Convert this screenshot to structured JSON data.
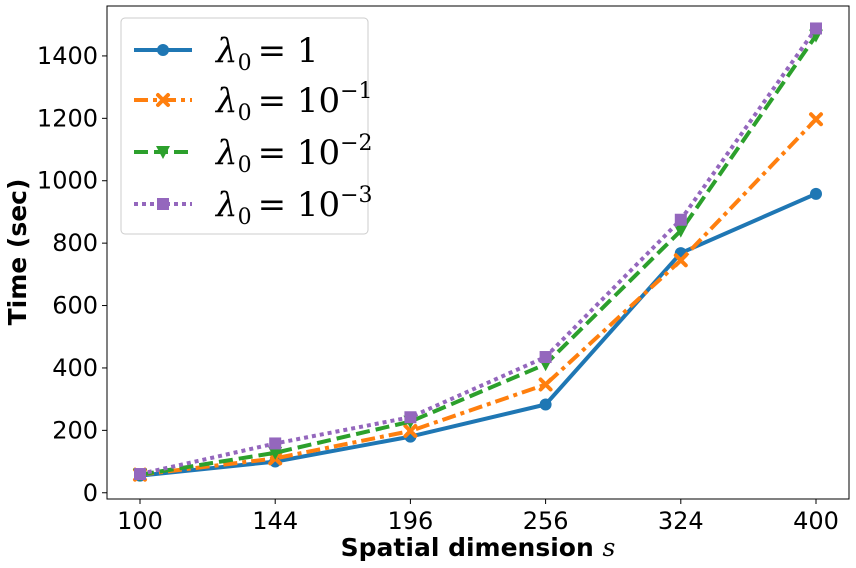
{
  "chart_data": {
    "type": "line",
    "xlabel": "Spatial dimension",
    "xlabel_var": "s",
    "ylabel": "Time (sec)",
    "x_tick_labels": [
      "100",
      "144",
      "196",
      "256",
      "324",
      "400"
    ],
    "x_scale": "sqrt",
    "y_ticks": [
      0,
      200,
      400,
      600,
      800,
      1000,
      1200,
      1400
    ],
    "ylim": [
      -20,
      1560
    ],
    "grid": false,
    "legend": "top-left",
    "x": [
      100,
      144,
      196,
      256,
      324,
      400
    ],
    "series": [
      {
        "name": "λ0 = 1",
        "legend_base": "λ",
        "legend_sub": "0",
        "legend_rhs": "= 1",
        "legend_exp": "",
        "color": "#1f77b4",
        "dash": "solid",
        "marker": "circle",
        "values": [
          55,
          100,
          180,
          283,
          768,
          958
        ]
      },
      {
        "name": "λ0 = 10^-1",
        "legend_base": "λ",
        "legend_sub": "0",
        "legend_rhs": "= 10",
        "legend_exp": "−1",
        "color": "#ff7f0e",
        "dash": "dashdot",
        "marker": "x",
        "values": [
          58,
          110,
          198,
          347,
          745,
          1197
        ]
      },
      {
        "name": "λ0 = 10^-2",
        "legend_base": "λ",
        "legend_sub": "0",
        "legend_rhs": "= 10",
        "legend_exp": "−2",
        "color": "#2ca02c",
        "dash": "dashed",
        "marker": "triangle-down",
        "values": [
          58,
          128,
          228,
          412,
          840,
          1465
        ]
      },
      {
        "name": "λ0 = 10^-3",
        "legend_base": "λ",
        "legend_sub": "0",
        "legend_rhs": "= 10",
        "legend_exp": "−3",
        "color": "#9467bd",
        "dash": "dotted",
        "marker": "square",
        "values": [
          60,
          158,
          242,
          435,
          875,
          1488
        ]
      }
    ]
  }
}
